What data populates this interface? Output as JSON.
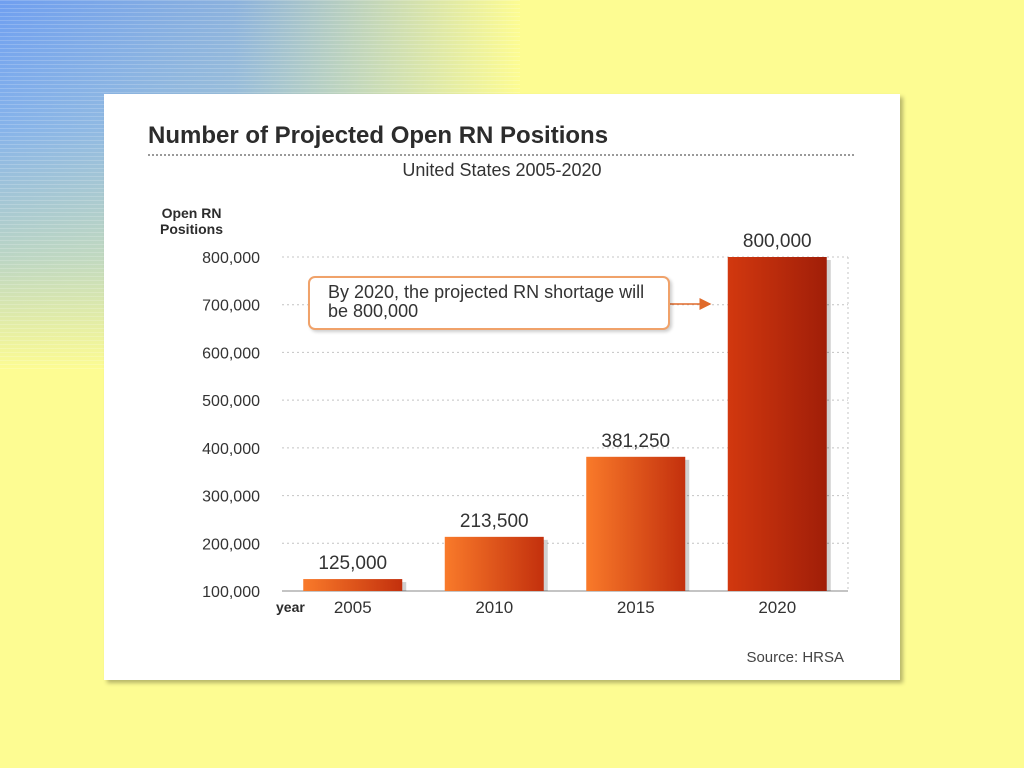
{
  "colors": {
    "background": "#fdfc92",
    "bar_light": "#f97a2a",
    "bar_dark": "#c3300d",
    "bar_highlight_light": "#d2380f",
    "bar_highlight_dark": "#a01e08",
    "callout_border": "#f0a26a"
  },
  "chart_data": {
    "type": "bar",
    "title": "Number of Projected Open RN Positions",
    "subtitle": "United States 2005-2020",
    "ylabel": "Open RN\nPositions",
    "xlabel": "year",
    "categories": [
      "2005",
      "2010",
      "2015",
      "2020"
    ],
    "values": [
      125000,
      213500,
      381250,
      800000
    ],
    "value_labels": [
      "125,000",
      "213,500",
      "381,250",
      "800,000"
    ],
    "yticks": [
      100000,
      200000,
      300000,
      400000,
      500000,
      600000,
      700000,
      800000
    ],
    "ytick_labels": [
      "100,000",
      "200,000",
      "300,000",
      "400,000",
      "500,000",
      "600,000",
      "700,000",
      "800,000"
    ],
    "ylim": [
      100000,
      800000
    ],
    "grid": "horizontal dotted",
    "annotation": "By 2020, the projected RN shortage will be 800,000",
    "source": "Source: HRSA"
  }
}
